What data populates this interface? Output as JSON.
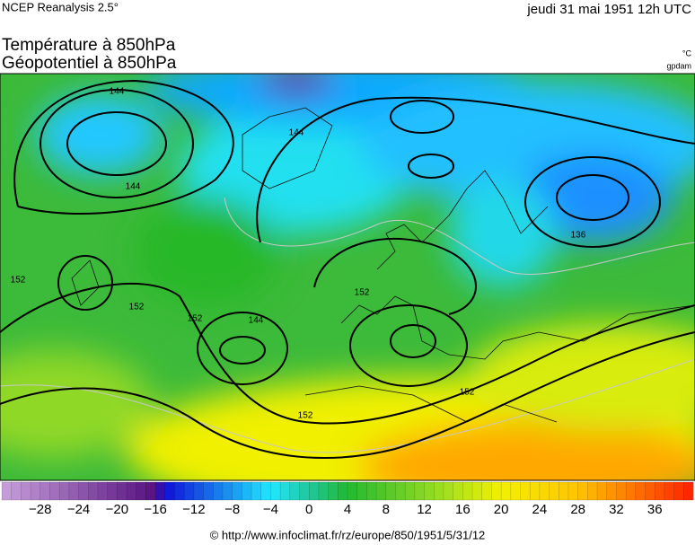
{
  "header": {
    "source": "NCEP Reanalysis 2.5°",
    "date": "jeudi 31 mai 1951 12h UTC",
    "title_line1": "Température à 850hPa",
    "title_line2": "Géopotentiel à 850hPa",
    "unit_temperature": "°C",
    "unit_geopotential": "gpdam"
  },
  "map": {
    "contour_labels": [
      144,
      144,
      144,
      136,
      152,
      152,
      152,
      144,
      152,
      152,
      152
    ]
  },
  "colorbar": {
    "lim": [
      -32,
      40
    ],
    "stops": [
      {
        "value": -32,
        "color": "#c9a0dc"
      },
      {
        "value": -16,
        "color": "#55107f"
      },
      {
        "value": -15,
        "color": "#1010d8"
      },
      {
        "value": -4,
        "color": "#20e8ff"
      },
      {
        "value": 0,
        "color": "#20c89c"
      },
      {
        "value": 4,
        "color": "#22b830"
      },
      {
        "value": 14,
        "color": "#a0e020"
      },
      {
        "value": 20,
        "color": "#f4f000"
      },
      {
        "value": 28,
        "color": "#ffc400"
      },
      {
        "value": 40,
        "color": "#ff2000"
      }
    ],
    "ticks": [
      {
        "value": -28,
        "label": "−28"
      },
      {
        "value": -24,
        "label": "−24"
      },
      {
        "value": -20,
        "label": "−20"
      },
      {
        "value": -16,
        "label": "−16"
      },
      {
        "value": -12,
        "label": "−12"
      },
      {
        "value": -8,
        "label": "−8"
      },
      {
        "value": -4,
        "label": "−4"
      },
      0,
      4,
      8,
      12,
      16,
      20,
      24,
      28,
      32,
      36
    ]
  },
  "footer": {
    "text": "© http://www.infoclimat.fr/rz/europe/850/1951/5/31/12"
  }
}
